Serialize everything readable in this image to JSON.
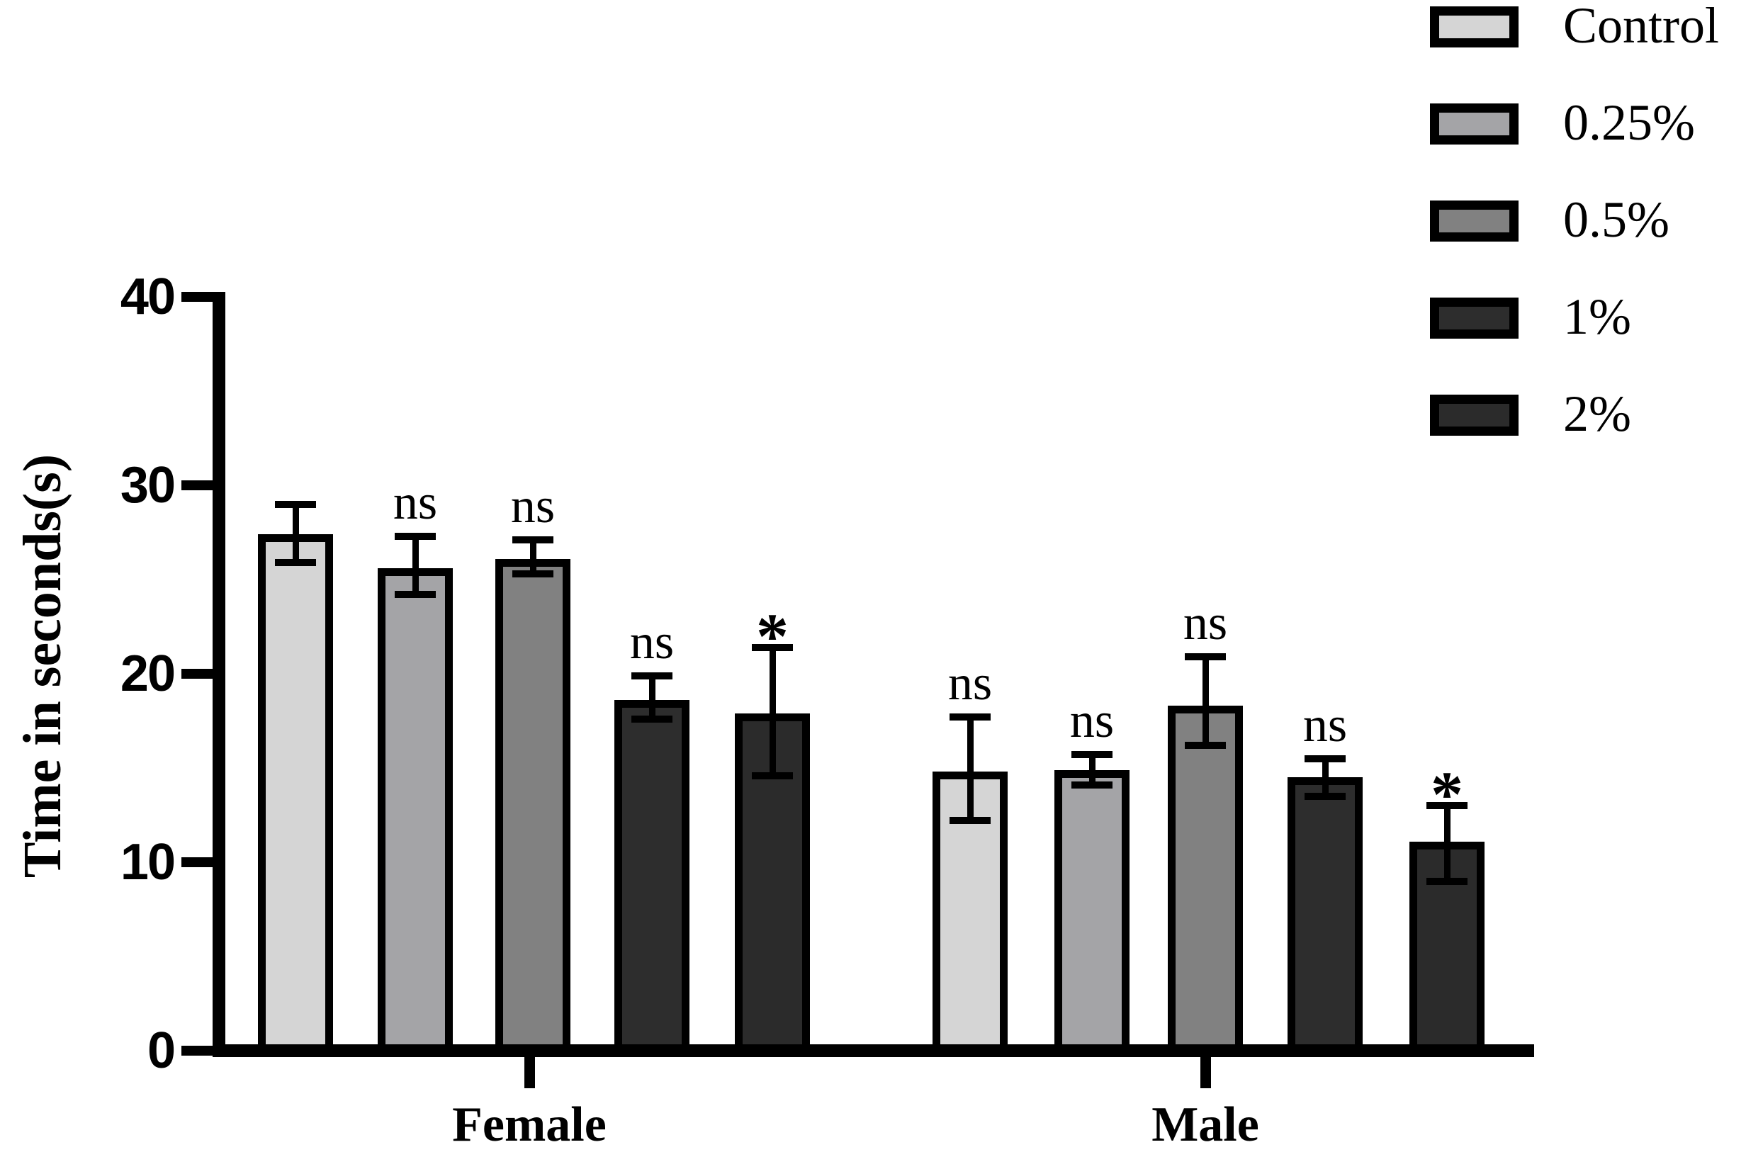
{
  "figure": {
    "ylabel": "Time in seconds(s)",
    "group_labels": [
      "Female",
      "Male"
    ],
    "legend_labels": [
      "Control",
      "0.25%",
      "0.5%",
      "1%",
      "2%"
    ],
    "significance_labels": {
      "not_significant": "ns",
      "significant": "*"
    }
  },
  "chart_data": {
    "type": "bar",
    "title": "",
    "xlabel": "",
    "ylabel": "Time in seconds(s)",
    "ylim": [
      0,
      40
    ],
    "yticks": [
      0,
      10,
      20,
      30,
      40
    ],
    "grid": false,
    "error_bars": true,
    "legend_position": "top-right",
    "groups": [
      "Female",
      "Male"
    ],
    "series": [
      {
        "name": "Control",
        "color": "#d5d5d5",
        "values": [
          27.4,
          14.8
        ],
        "err_up": [
          1.6,
          2.9
        ],
        "err_down": [
          1.5,
          2.6
        ],
        "annotations": [
          "",
          "ns"
        ]
      },
      {
        "name": "0.25%",
        "color": "#a4a4a7",
        "values": [
          25.6,
          14.9
        ],
        "err_up": [
          1.7,
          0.8
        ],
        "err_down": [
          1.4,
          0.8
        ],
        "annotations": [
          "ns",
          "ns"
        ]
      },
      {
        "name": "0.5%",
        "color": "#818181",
        "values": [
          26.1,
          18.3
        ],
        "err_up": [
          1.0,
          2.6
        ],
        "err_down": [
          0.8,
          2.1
        ],
        "annotations": [
          "ns",
          "ns"
        ]
      },
      {
        "name": "1%",
        "color": "#2d2d2d",
        "values": [
          18.6,
          14.5
        ],
        "err_up": [
          1.3,
          1.0
        ],
        "err_down": [
          1.0,
          1.0
        ],
        "annotations": [
          "ns",
          "ns"
        ]
      },
      {
        "name": "2%",
        "color": "#2b2b2b",
        "values": [
          17.9,
          11.1
        ],
        "err_up": [
          3.5,
          1.9
        ],
        "err_down": [
          3.3,
          2.1
        ],
        "annotations": [
          "*",
          "*"
        ]
      }
    ]
  }
}
